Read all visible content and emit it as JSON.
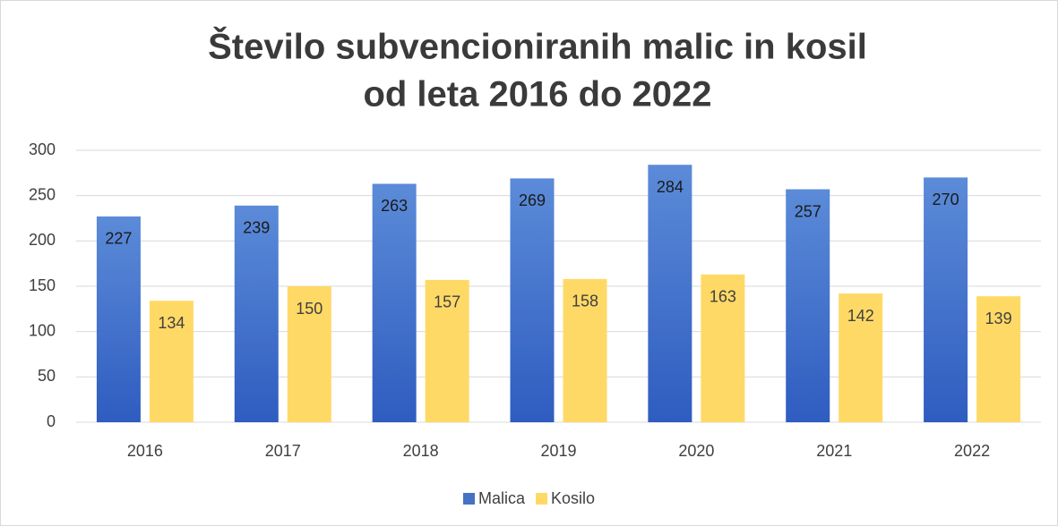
{
  "chart_data": {
    "type": "bar",
    "title": [
      "Število subvencioniranih malic in kosil",
      "od leta 2016 do 2022"
    ],
    "categories": [
      "2016",
      "2017",
      "2018",
      "2019",
      "2020",
      "2021",
      "2022"
    ],
    "series": [
      {
        "name": "Malica",
        "color": "#4472c4",
        "values": [
          227,
          239,
          263,
          269,
          284,
          257,
          270
        ]
      },
      {
        "name": "Kosilo",
        "color": "#ffd966",
        "values": [
          134,
          150,
          157,
          158,
          163,
          142,
          139
        ]
      }
    ],
    "ylim": [
      0,
      300
    ],
    "yticks": [
      0,
      50,
      100,
      150,
      200,
      250,
      300
    ],
    "grid": true,
    "legend": "bottom"
  }
}
